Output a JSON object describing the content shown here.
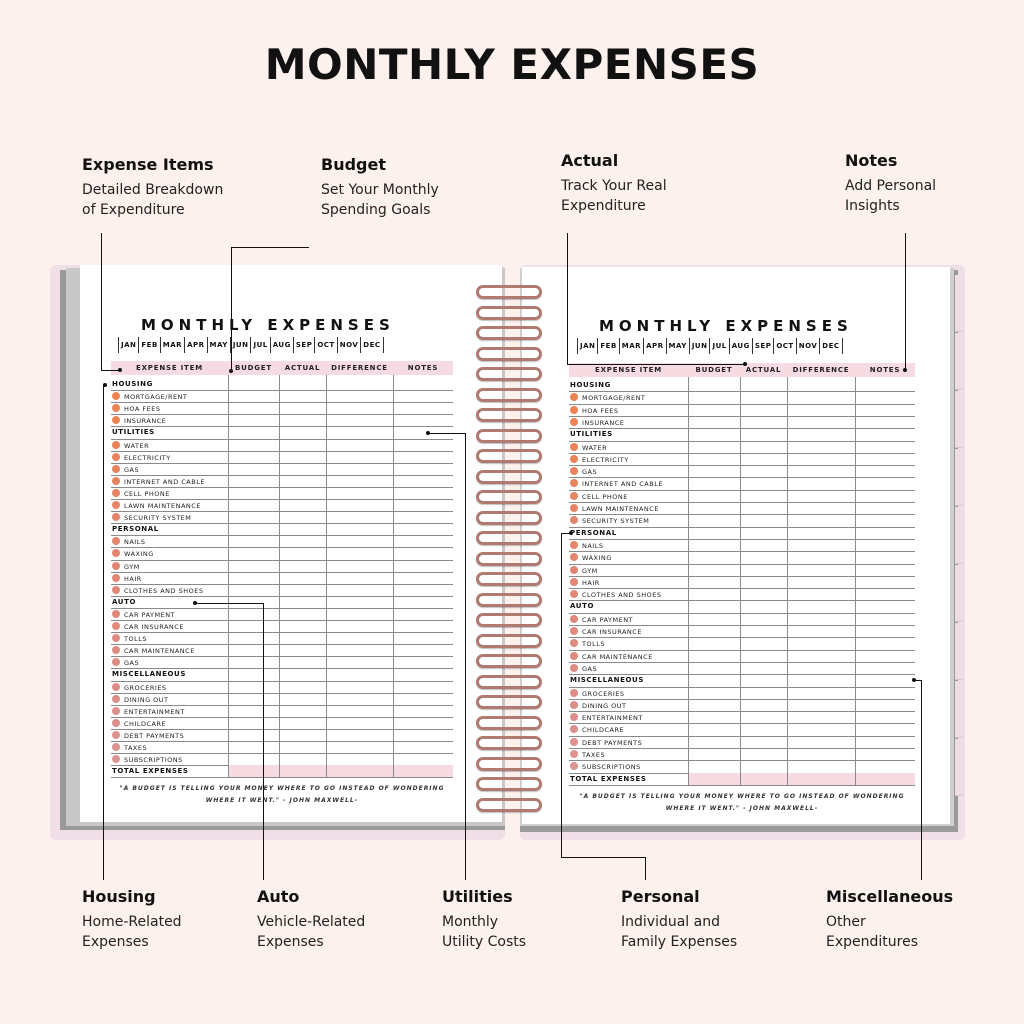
{
  "title": "MONTHLY EXPENSES",
  "callouts": {
    "expense_items": {
      "title": "Expense Items",
      "desc": "Detailed Breakdown\nof Expenditure"
    },
    "budget": {
      "title": "Budget",
      "desc": "Set Your Monthly\nSpending Goals"
    },
    "actual": {
      "title": "Actual",
      "desc": "Track Your Real\nExpenditure"
    },
    "notes": {
      "title": "Notes",
      "desc": "Add Personal\nInsights"
    },
    "housing": {
      "title": "Housing",
      "desc": "Home-Related\nExpenses"
    },
    "auto": {
      "title": "Auto",
      "desc": "Vehicle-Related\nExpenses"
    },
    "utilities": {
      "title": "Utilities",
      "desc": "Monthly\nUtility Costs"
    },
    "personal": {
      "title": "Personal",
      "desc": "Individual and\nFamily Expenses"
    },
    "miscellaneous": {
      "title": "Miscellaneous",
      "desc": "Other\nExpenditures"
    }
  },
  "planner": {
    "page_title": "MONTHLY EXPENSES",
    "months": [
      "JAN",
      "FEB",
      "MAR",
      "APR",
      "MAY",
      "JUN",
      "JUL",
      "AUG",
      "SEP",
      "OCT",
      "NOV",
      "DEC"
    ],
    "columns": [
      "EXPENSE ITEM",
      "BUDGET",
      "ACTUAL",
      "DIFFERENCE",
      "NOTES"
    ],
    "categories": [
      {
        "name": "HOUSING",
        "items": [
          "MORTGAGE/RENT",
          "HOA FEES",
          "INSURANCE"
        ]
      },
      {
        "name": "UTILITIES",
        "items": [
          "WATER",
          "ELECTRICITY",
          "GAS",
          "INTERNET AND CABLE",
          "CELL PHONE",
          "LAWN MAINTENANCE",
          "SECURITY SYSTEM"
        ]
      },
      {
        "name": "PERSONAL",
        "items": [
          "NAILS",
          "WAXING",
          "GYM",
          "HAIR",
          "CLOTHES AND SHOES"
        ]
      },
      {
        "name": "AUTO",
        "items": [
          "CAR PAYMENT",
          "CAR INSURANCE",
          "TOLLS",
          "CAR MAINTENANCE",
          "GAS"
        ]
      },
      {
        "name": "MISCELLANEOUS",
        "items": [
          "GROCERIES",
          "DINING OUT",
          "ENTERTAINMENT",
          "CHILDCARE",
          "DEBT PAYMENTS",
          "TAXES",
          "SUBSCRIPTIONS"
        ]
      }
    ],
    "total_label": "TOTAL EXPENSES",
    "quote_line1": "\"A BUDGET IS TELLING YOUR MONEY WHERE TO GO INSTEAD OF WONDERING",
    "quote_line2": "WHERE IT WENT.\" - JOHN MAXWELL-"
  },
  "colors": {
    "background": "#fcf1ec",
    "header_pink": "#f7dbe3",
    "cover_pink": "#f1dfe8",
    "coil": "#b07a72",
    "dot_gradient": [
      "#f08a3c",
      "#e6a6a6"
    ]
  }
}
